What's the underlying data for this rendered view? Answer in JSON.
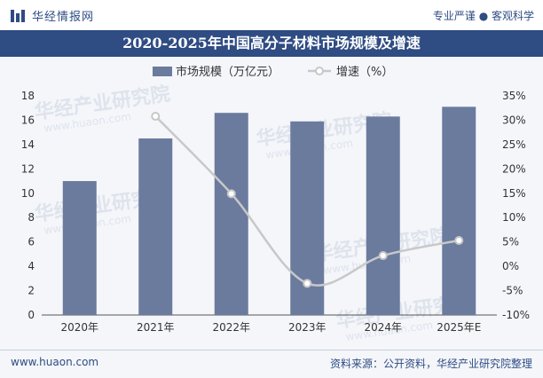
{
  "header": {
    "brand_name": "华经情报网",
    "slogan": "专业严谨 ● 客观科学"
  },
  "title": "2020-2025年中国高分子材料市场规模及增速",
  "footer": {
    "website": "www.huaon.com",
    "source": "资料来源：公开资料，华经产业研究院整理"
  },
  "watermark": {
    "text_cn": "华经产业研究院",
    "text_url": "www.huaon.com"
  },
  "colors": {
    "bar": "#6b7b9e",
    "line": "#c8c8c8",
    "brand": "#2f4c83"
  },
  "chart_data": {
    "type": "bar",
    "categories": [
      "2020年",
      "2021年",
      "2022年",
      "2023年",
      "2024年",
      "2025年E"
    ],
    "series": [
      {
        "name": "市场规模（万亿元）",
        "type": "bar",
        "axis": "left",
        "values": [
          11.0,
          14.5,
          16.6,
          15.9,
          16.3,
          17.1
        ]
      },
      {
        "name": "增速（%）",
        "type": "line",
        "axis": "right",
        "values": [
          null,
          30.8,
          14.9,
          -3.5,
          2.2,
          5.3
        ]
      }
    ],
    "y_left": {
      "min": 0,
      "max": 18,
      "ticks": [
        0,
        2,
        4,
        6,
        8,
        10,
        12,
        14,
        16,
        18
      ]
    },
    "y_right": {
      "min": -10,
      "max": 35,
      "ticks": [
        "-10%",
        "-5%",
        "0%",
        "5%",
        "10%",
        "15%",
        "20%",
        "25%",
        "30%",
        "35%"
      ]
    },
    "legend": "top-center",
    "grid": false
  }
}
